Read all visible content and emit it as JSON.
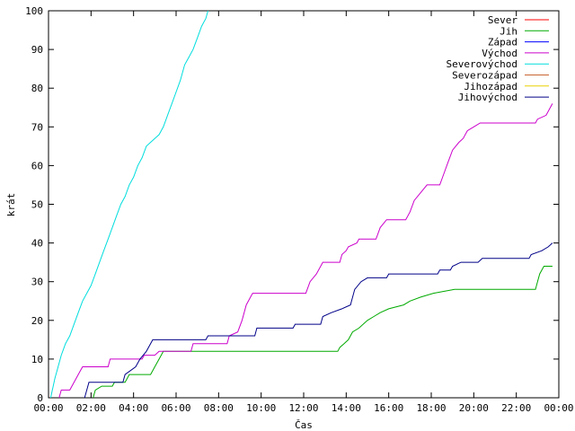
{
  "chart_data": {
    "type": "line",
    "xlabel": "Čas",
    "ylabel": "krát",
    "xlim": [
      0,
      24
    ],
    "ylim": [
      0,
      100
    ],
    "x_ticks": [
      {
        "v": 0,
        "label": "00:00"
      },
      {
        "v": 2,
        "label": "02:00"
      },
      {
        "v": 4,
        "label": "04:00"
      },
      {
        "v": 6,
        "label": "06:00"
      },
      {
        "v": 8,
        "label": "08:00"
      },
      {
        "v": 10,
        "label": "10:00"
      },
      {
        "v": 12,
        "label": "12:00"
      },
      {
        "v": 14,
        "label": "14:00"
      },
      {
        "v": 16,
        "label": "16:00"
      },
      {
        "v": 18,
        "label": "18:00"
      },
      {
        "v": 20,
        "label": "20:00"
      },
      {
        "v": 22,
        "label": "22:00"
      },
      {
        "v": 24,
        "label": "00:00"
      }
    ],
    "y_ticks": [
      0,
      10,
      20,
      30,
      40,
      50,
      60,
      70,
      80,
      90,
      100
    ],
    "grid": false,
    "legend_position": "top-right",
    "series": [
      {
        "name": "Sever",
        "color": "#ff0000",
        "points": []
      },
      {
        "name": "Jih",
        "color": "#00aa00",
        "points": [
          [
            2.1,
            0
          ],
          [
            2.2,
            2
          ],
          [
            2.5,
            3
          ],
          [
            3.0,
            3
          ],
          [
            3.1,
            4
          ],
          [
            3.6,
            4
          ],
          [
            3.7,
            5
          ],
          [
            3.8,
            6
          ],
          [
            4.8,
            6
          ],
          [
            5.0,
            8
          ],
          [
            5.2,
            10
          ],
          [
            5.4,
            12
          ],
          [
            13.6,
            12
          ],
          [
            13.7,
            13
          ],
          [
            13.9,
            14
          ],
          [
            14.1,
            15
          ],
          [
            14.3,
            17
          ],
          [
            14.6,
            18
          ],
          [
            15.0,
            20
          ],
          [
            15.3,
            21
          ],
          [
            15.6,
            22
          ],
          [
            16.0,
            23
          ],
          [
            16.7,
            24
          ],
          [
            17.0,
            25
          ],
          [
            17.5,
            26
          ],
          [
            18.1,
            27
          ],
          [
            19.1,
            28
          ],
          [
            22.9,
            28
          ],
          [
            23.0,
            30
          ],
          [
            23.1,
            32
          ],
          [
            23.3,
            34
          ],
          [
            23.7,
            34
          ]
        ]
      },
      {
        "name": "Západ",
        "color": "#0000ff",
        "points": []
      },
      {
        "name": "Východ",
        "color": "#cc00cc",
        "points": [
          [
            0.5,
            0
          ],
          [
            0.6,
            2
          ],
          [
            1.0,
            2
          ],
          [
            1.1,
            3
          ],
          [
            1.3,
            5
          ],
          [
            1.5,
            7
          ],
          [
            1.6,
            8
          ],
          [
            2.8,
            8
          ],
          [
            2.9,
            10
          ],
          [
            4.4,
            10
          ],
          [
            4.5,
            11
          ],
          [
            5.0,
            11
          ],
          [
            5.2,
            12
          ],
          [
            6.7,
            12
          ],
          [
            6.8,
            14
          ],
          [
            8.4,
            14
          ],
          [
            8.5,
            16
          ],
          [
            8.9,
            17
          ],
          [
            9.1,
            20
          ],
          [
            9.3,
            24
          ],
          [
            9.5,
            26
          ],
          [
            9.6,
            27
          ],
          [
            12.1,
            27
          ],
          [
            12.3,
            30
          ],
          [
            12.6,
            32
          ],
          [
            12.9,
            35
          ],
          [
            13.7,
            35
          ],
          [
            13.8,
            37
          ],
          [
            14.0,
            38
          ],
          [
            14.1,
            39
          ],
          [
            14.5,
            40
          ],
          [
            14.6,
            41
          ],
          [
            15.4,
            41
          ],
          [
            15.6,
            44
          ],
          [
            15.9,
            46
          ],
          [
            16.8,
            46
          ],
          [
            17.0,
            48
          ],
          [
            17.2,
            51
          ],
          [
            17.5,
            53
          ],
          [
            17.8,
            55
          ],
          [
            18.4,
            55
          ],
          [
            18.6,
            58
          ],
          [
            18.8,
            61
          ],
          [
            19.0,
            64
          ],
          [
            19.3,
            66
          ],
          [
            19.5,
            67
          ],
          [
            19.7,
            69
          ],
          [
            20.0,
            70
          ],
          [
            20.3,
            71
          ],
          [
            22.9,
            71
          ],
          [
            23.0,
            72
          ],
          [
            23.4,
            73
          ],
          [
            23.6,
            75
          ],
          [
            23.7,
            76
          ]
        ]
      },
      {
        "name": "Severovýchod",
        "color": "#00dddd",
        "points": [
          [
            0.1,
            0
          ],
          [
            0.3,
            5
          ],
          [
            0.4,
            7
          ],
          [
            0.6,
            11
          ],
          [
            0.8,
            14
          ],
          [
            1.0,
            16
          ],
          [
            1.2,
            19
          ],
          [
            1.4,
            22
          ],
          [
            1.6,
            25
          ],
          [
            1.8,
            27
          ],
          [
            2.0,
            29
          ],
          [
            2.2,
            32
          ],
          [
            2.4,
            35
          ],
          [
            2.6,
            38
          ],
          [
            2.8,
            41
          ],
          [
            3.0,
            44
          ],
          [
            3.2,
            47
          ],
          [
            3.4,
            50
          ],
          [
            3.6,
            52
          ],
          [
            3.8,
            55
          ],
          [
            4.0,
            57
          ],
          [
            4.2,
            60
          ],
          [
            4.4,
            62
          ],
          [
            4.6,
            65
          ],
          [
            4.8,
            66
          ],
          [
            5.0,
            67
          ],
          [
            5.2,
            68
          ],
          [
            5.4,
            70
          ],
          [
            5.6,
            73
          ],
          [
            5.8,
            76
          ],
          [
            6.0,
            79
          ],
          [
            6.2,
            82
          ],
          [
            6.4,
            86
          ],
          [
            6.6,
            88
          ],
          [
            6.8,
            90
          ],
          [
            7.0,
            93
          ],
          [
            7.2,
            96
          ],
          [
            7.4,
            98
          ],
          [
            7.5,
            100
          ]
        ]
      },
      {
        "name": "Severozápad",
        "color": "#c86432",
        "points": []
      },
      {
        "name": "Jihozápad",
        "color": "#e8d000",
        "points": []
      },
      {
        "name": "Jihovýchod",
        "color": "#000088",
        "points": [
          [
            1.7,
            0
          ],
          [
            1.8,
            2
          ],
          [
            1.9,
            4
          ],
          [
            3.5,
            4
          ],
          [
            3.6,
            6
          ],
          [
            4.1,
            8
          ],
          [
            4.3,
            10
          ],
          [
            4.6,
            12
          ],
          [
            4.8,
            14
          ],
          [
            4.9,
            15
          ],
          [
            7.4,
            15
          ],
          [
            7.5,
            16
          ],
          [
            9.7,
            16
          ],
          [
            9.8,
            18
          ],
          [
            11.5,
            18
          ],
          [
            11.6,
            19
          ],
          [
            12.8,
            19
          ],
          [
            12.9,
            21
          ],
          [
            13.3,
            22
          ],
          [
            13.8,
            23
          ],
          [
            14.2,
            24
          ],
          [
            14.4,
            28
          ],
          [
            14.7,
            30
          ],
          [
            15.0,
            31
          ],
          [
            15.9,
            31
          ],
          [
            16.0,
            32
          ],
          [
            18.3,
            32
          ],
          [
            18.4,
            33
          ],
          [
            18.9,
            33
          ],
          [
            19.0,
            34
          ],
          [
            19.4,
            35
          ],
          [
            20.2,
            35
          ],
          [
            20.4,
            36
          ],
          [
            22.6,
            36
          ],
          [
            22.7,
            37
          ],
          [
            23.2,
            38
          ],
          [
            23.5,
            39
          ],
          [
            23.7,
            40
          ]
        ]
      }
    ]
  }
}
